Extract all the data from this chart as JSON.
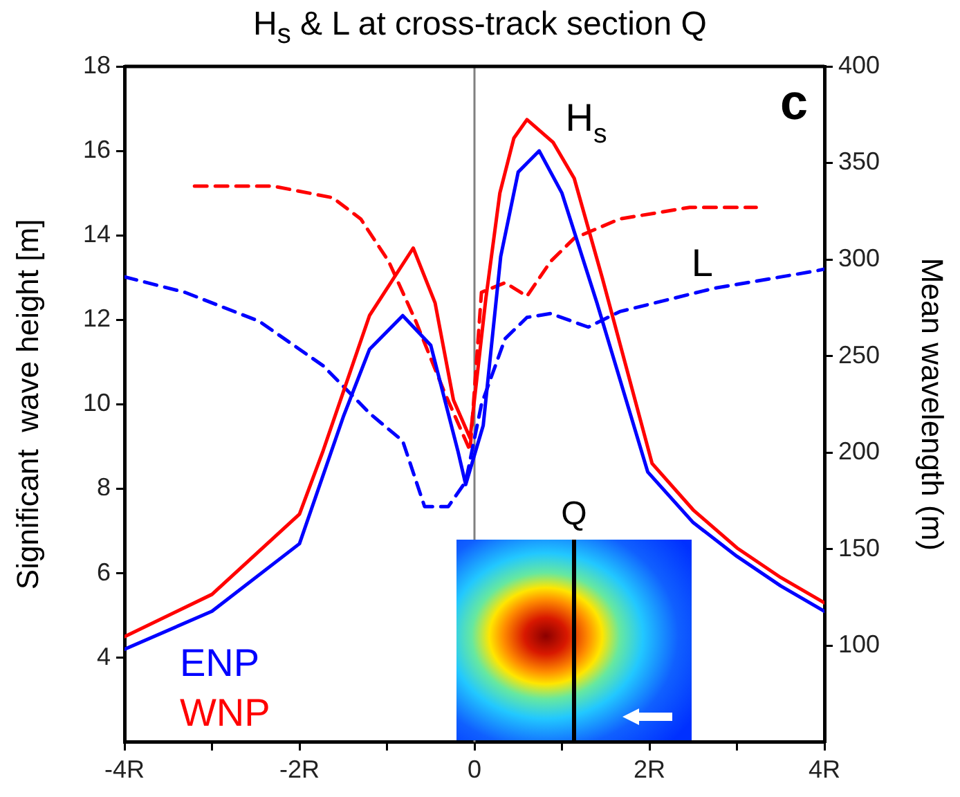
{
  "chart_data": {
    "type": "line",
    "title": "H$_{s}$ & L at cross-track section Q",
    "ylabel": "Significant  wave height [m]",
    "y2label": "Mean wavelength (m)",
    "xlim": [
      -4,
      4
    ],
    "xticks": [
      {
        "value": -4,
        "label": "-4R"
      },
      {
        "value": -3,
        "label": null
      },
      {
        "value": -2,
        "label": "-2R"
      },
      {
        "value": -1,
        "label": null
      },
      0,
      {
        "value": 1,
        "label": null
      },
      {
        "value": 2,
        "label": "2R"
      },
      {
        "value": 3,
        "label": null
      },
      {
        "value": 4,
        "label": "4R"
      }
    ],
    "ylim": [
      2,
      18
    ],
    "yticks": [
      4,
      6,
      8,
      10,
      12,
      14,
      16,
      18
    ],
    "y2lim": [
      50,
      400
    ],
    "y2ticks": [
      100,
      150,
      200,
      250,
      300,
      350,
      400
    ],
    "grid": false,
    "legend": "bottom left",
    "marker": "none",
    "series": [
      {
        "name": "ENP",
        "color": "#0000ff",
        "x": [
          -4,
          -3,
          -2,
          -1.5,
          -1.2,
          -0.82,
          -0.5,
          -0.19,
          -0.1,
          0.1,
          0.3,
          0.5,
          0.74,
          1.0,
          1.4,
          1.98,
          2.5,
          3,
          3.5,
          4
        ],
        "values": [
          4.2,
          5.1,
          6.7,
          9.7,
          11.3,
          12.1,
          11.4,
          8.9,
          8.1,
          9.5,
          13.5,
          15.5,
          16.0,
          15.0,
          12.4,
          8.4,
          7.2,
          6.4,
          5.7,
          5.1
        ]
      },
      {
        "name": "WNP",
        "color": "#ff0000",
        "x": [
          -4,
          -3,
          -2,
          -1.73,
          -1.2,
          -0.7,
          -0.45,
          -0.24,
          -0.05,
          0.13,
          0.29,
          0.45,
          0.6,
          0.9,
          1.14,
          1.46,
          2.03,
          2.5,
          3,
          3.5,
          4
        ],
        "values": [
          4.5,
          5.5,
          7.4,
          8.9,
          12.1,
          13.7,
          12.4,
          10.1,
          9.2,
          12.5,
          15.0,
          16.3,
          16.74,
          16.2,
          15.35,
          13.0,
          8.6,
          7.5,
          6.6,
          5.9,
          5.3
        ]
      },
      {
        "color": "#0000ff",
        "axis": "y2",
        "line_style": "dashed",
        "x": [
          -4,
          -3.31,
          -2.46,
          -1.73,
          -1.19,
          -0.82,
          -0.57,
          -0.3,
          -0.1,
          0.08,
          0.35,
          0.6,
          0.87,
          1.3,
          1.66,
          2.73,
          3.89,
          4
        ],
        "values": [
          291,
          283,
          268,
          245,
          220,
          206,
          172,
          172,
          185,
          225,
          259,
          270,
          272,
          265,
          273,
          285,
          294,
          295
        ]
      },
      {
        "color": "#ff0000",
        "axis": "y2",
        "line_style": "dashed",
        "x": [
          -3.2,
          -2.3,
          -1.62,
          -1.3,
          -0.98,
          -0.67,
          -0.35,
          -0.05,
          0.08,
          0.35,
          0.6,
          0.87,
          1.14,
          1.66,
          2.46,
          3.22
        ],
        "values": [
          338,
          338,
          332,
          321,
          299,
          268,
          232,
          201,
          283,
          288,
          281,
          299,
          311,
          321,
          327,
          327
        ]
      }
    ],
    "ref_lines": [
      {
        "axis": "x",
        "value": 0,
        "color": "#808080"
      }
    ],
    "annotations": [
      "c",
      "Q",
      "H$_{s}$",
      "L"
    ]
  }
}
